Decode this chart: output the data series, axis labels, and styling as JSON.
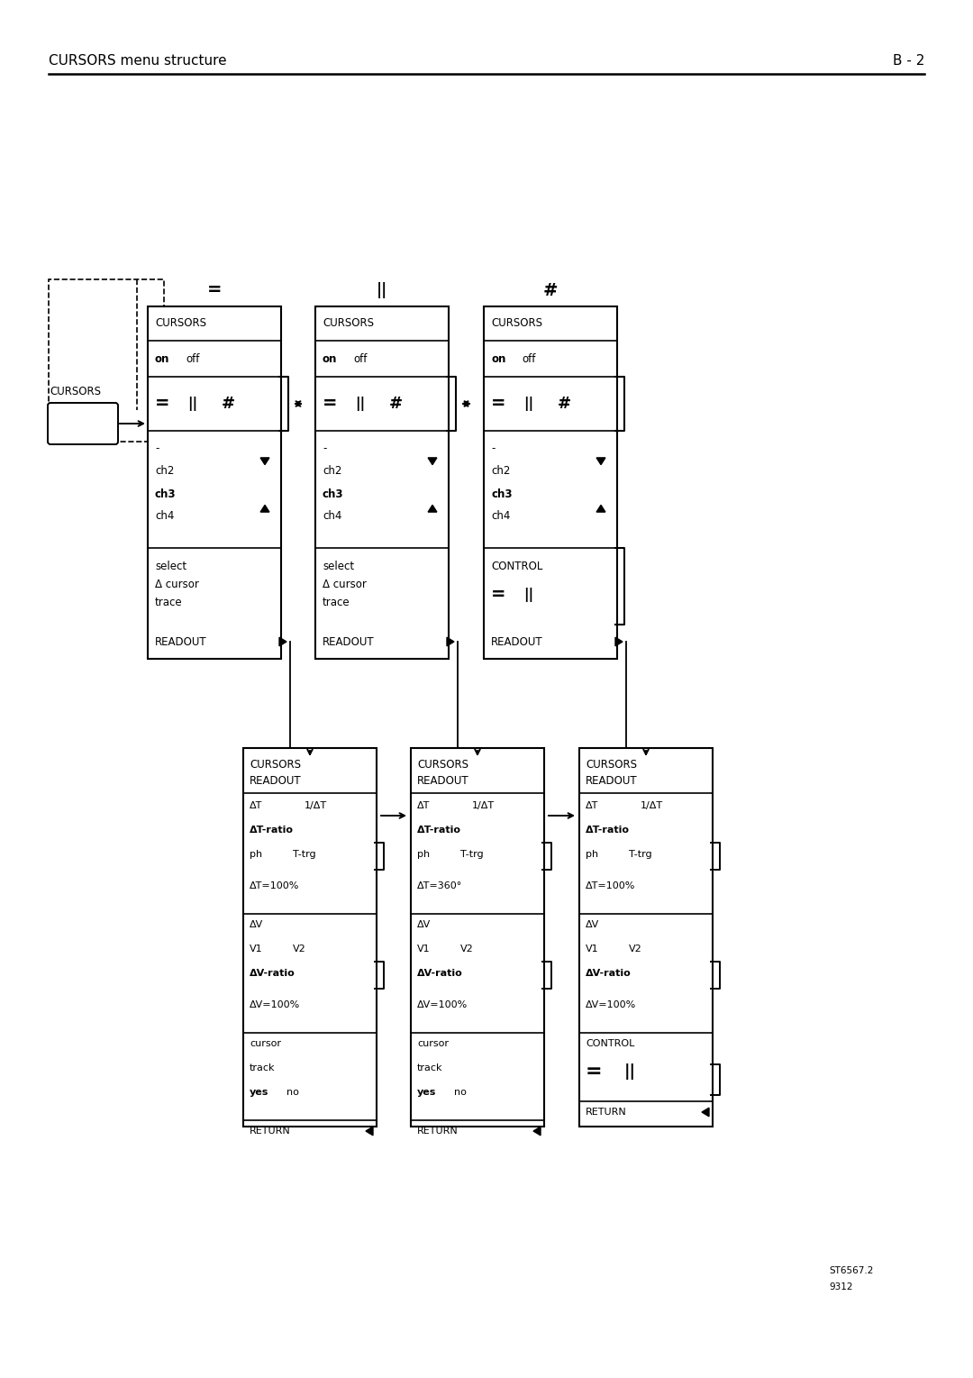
{
  "title_left": "CURSORS menu structure",
  "title_right": "B - 2",
  "footnote1": "ST6567.2",
  "footnote2": "9312",
  "bg_color": "#ffffff"
}
